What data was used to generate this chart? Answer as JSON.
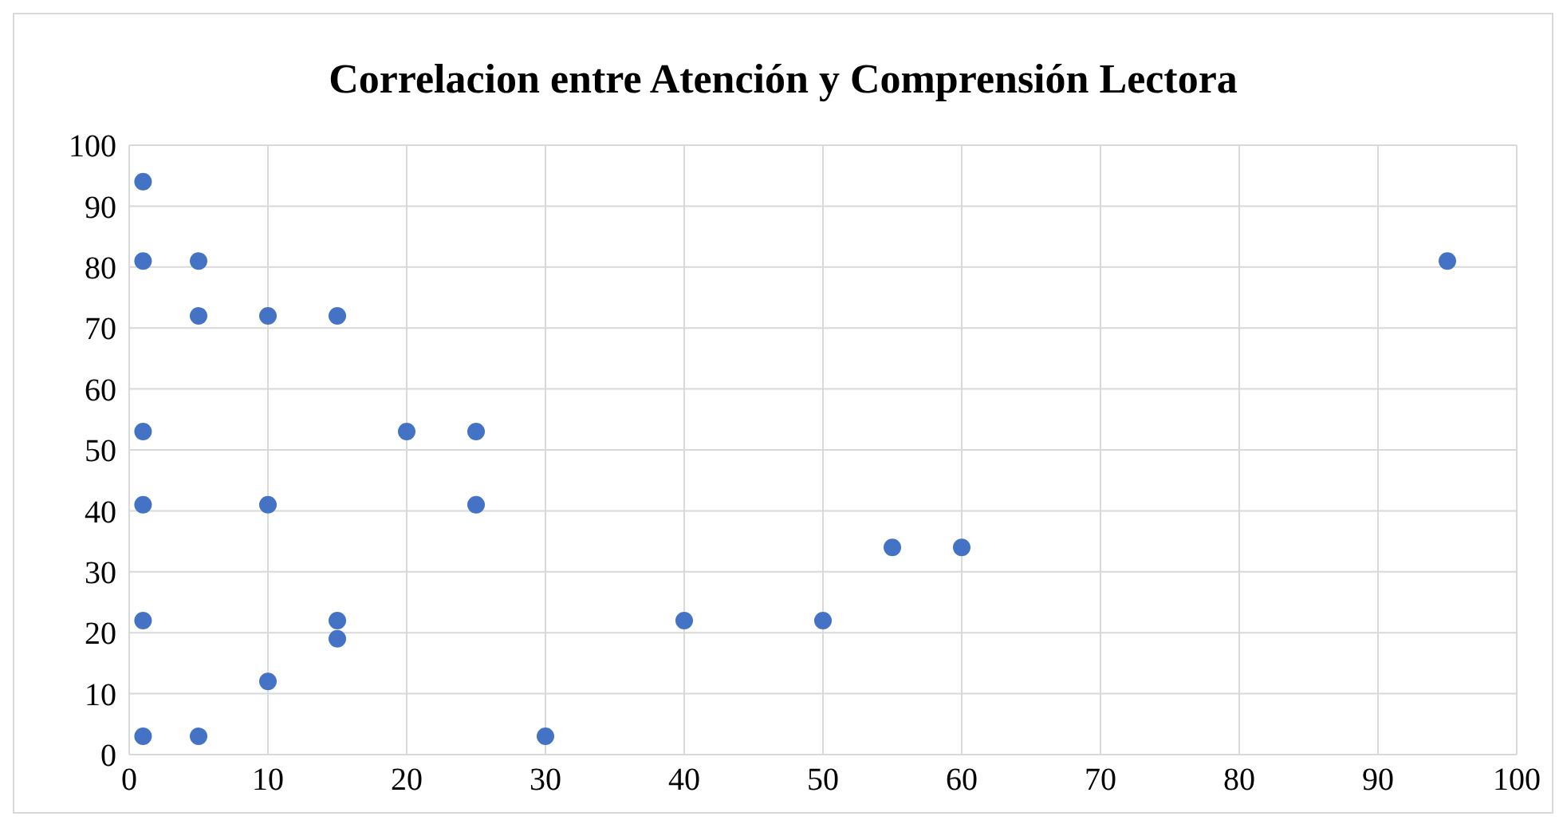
{
  "chart_data": {
    "type": "scatter",
    "title": "Correlacion entre Atención y Comprensión  Lectora",
    "x": [
      1,
      1,
      5,
      5,
      10,
      15,
      1,
      20,
      25,
      1,
      10,
      25,
      55,
      60,
      1,
      15,
      40,
      50,
      15,
      10,
      1,
      5,
      30,
      95
    ],
    "values": [
      94,
      81,
      81,
      72,
      72,
      72,
      53,
      53,
      53,
      41,
      41,
      41,
      34,
      34,
      22,
      22,
      22,
      22,
      19,
      12,
      3,
      3,
      3,
      81
    ],
    "color": "#4472c4",
    "marker": "circle",
    "xlim": [
      0,
      100
    ],
    "xticks": [
      0,
      10,
      20,
      30,
      40,
      50,
      60,
      70,
      80,
      90,
      100
    ],
    "ylim": [
      0,
      100
    ],
    "yticks": [
      0,
      10,
      20,
      30,
      40,
      50,
      60,
      70,
      80,
      90,
      100
    ],
    "grid": true
  }
}
